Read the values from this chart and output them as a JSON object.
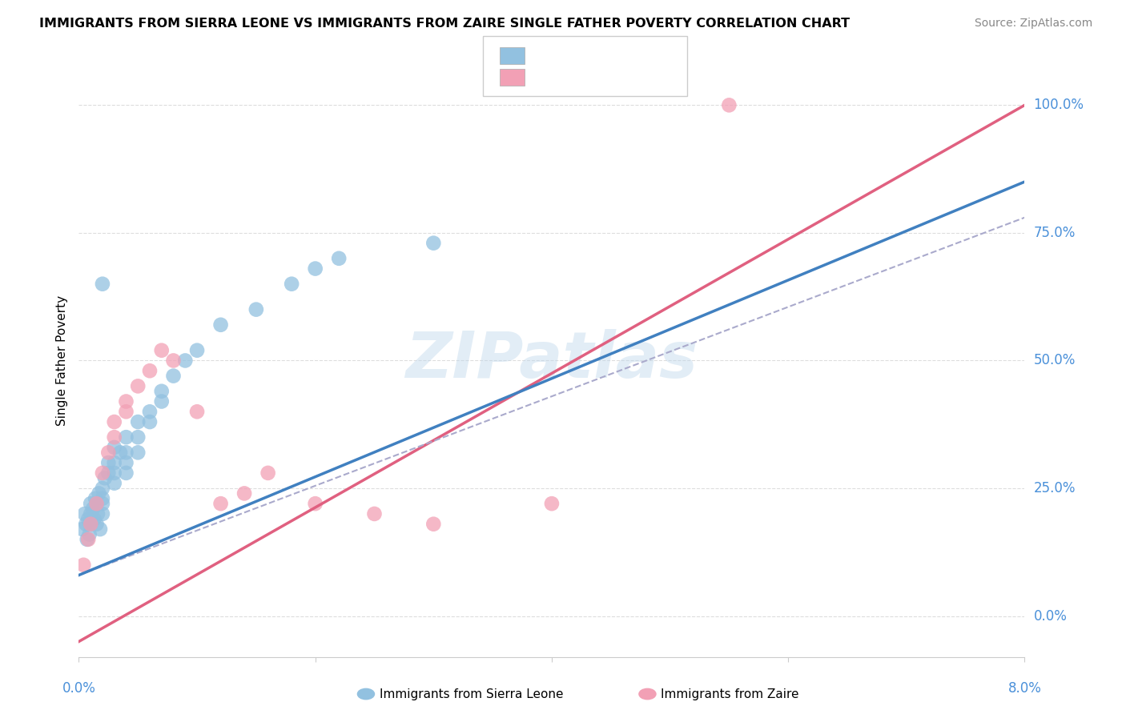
{
  "title": "IMMIGRANTS FROM SIERRA LEONE VS IMMIGRANTS FROM ZAIRE SINGLE FATHER POVERTY CORRELATION CHART",
  "source": "Source: ZipAtlas.com",
  "ylabel": "Single Father Poverty",
  "color_blue": "#92C1E0",
  "color_pink": "#F2A0B5",
  "color_blue_line": "#4080C0",
  "color_pink_line": "#E06080",
  "color_dashed": "#AAAACC",
  "watermark": "ZIPatlas",
  "xmin": 0.0,
  "xmax": 0.08,
  "ymin": -0.08,
  "ymax": 1.08,
  "yticks": [
    0.0,
    0.25,
    0.5,
    0.75,
    1.0
  ],
  "ytick_labels": [
    "0.0%",
    "25.0%",
    "50.0%",
    "75.0%",
    "100.0%"
  ],
  "blue_line_x0": 0.0,
  "blue_line_y0": 0.08,
  "blue_line_x1": 0.08,
  "blue_line_y1": 0.85,
  "pink_line_x0": 0.0,
  "pink_line_y0": -0.05,
  "pink_line_x1": 0.08,
  "pink_line_y1": 1.0,
  "dashed_line_x0": 0.0,
  "dashed_line_y0": 0.08,
  "dashed_line_x1": 0.08,
  "dashed_line_y1": 0.78,
  "sierra_leone_x": [
    0.0003,
    0.0005,
    0.0006,
    0.0007,
    0.0008,
    0.0009,
    0.001,
    0.001,
    0.001,
    0.0012,
    0.0013,
    0.0014,
    0.0015,
    0.0015,
    0.0016,
    0.0017,
    0.0018,
    0.002,
    0.002,
    0.002,
    0.002,
    0.0022,
    0.0025,
    0.0025,
    0.003,
    0.003,
    0.003,
    0.003,
    0.0035,
    0.004,
    0.004,
    0.004,
    0.004,
    0.005,
    0.005,
    0.005,
    0.006,
    0.006,
    0.007,
    0.007,
    0.008,
    0.009,
    0.01,
    0.012,
    0.015,
    0.018,
    0.02,
    0.022,
    0.03,
    0.002
  ],
  "sierra_leone_y": [
    0.17,
    0.2,
    0.18,
    0.15,
    0.19,
    0.16,
    0.2,
    0.22,
    0.18,
    0.21,
    0.19,
    0.23,
    0.22,
    0.18,
    0.2,
    0.24,
    0.17,
    0.25,
    0.23,
    0.2,
    0.22,
    0.27,
    0.3,
    0.28,
    0.3,
    0.28,
    0.26,
    0.33,
    0.32,
    0.35,
    0.32,
    0.3,
    0.28,
    0.38,
    0.35,
    0.32,
    0.4,
    0.38,
    0.44,
    0.42,
    0.47,
    0.5,
    0.52,
    0.57,
    0.6,
    0.65,
    0.68,
    0.7,
    0.73,
    0.65
  ],
  "zaire_x": [
    0.0004,
    0.0008,
    0.001,
    0.0015,
    0.002,
    0.0025,
    0.003,
    0.003,
    0.004,
    0.004,
    0.005,
    0.006,
    0.007,
    0.008,
    0.01,
    0.012,
    0.014,
    0.016,
    0.02,
    0.025,
    0.03,
    0.04,
    0.055
  ],
  "zaire_y": [
    0.1,
    0.15,
    0.18,
    0.22,
    0.28,
    0.32,
    0.38,
    0.35,
    0.42,
    0.4,
    0.45,
    0.48,
    0.52,
    0.5,
    0.4,
    0.22,
    0.24,
    0.28,
    0.22,
    0.2,
    0.18,
    0.22,
    1.0
  ]
}
